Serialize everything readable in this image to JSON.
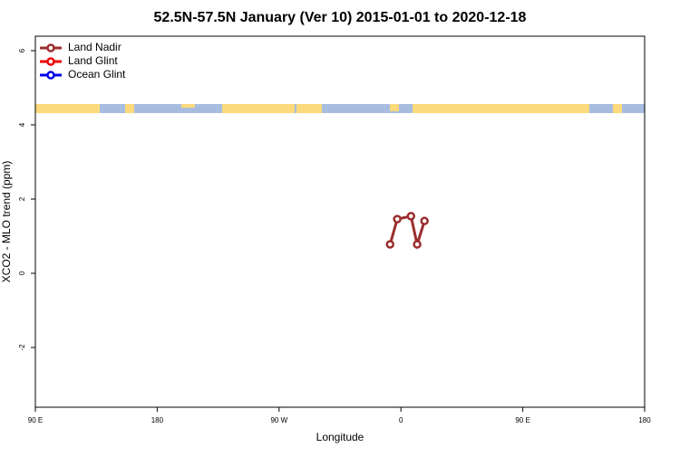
{
  "chart_data": {
    "type": "line",
    "title": "52.5N-57.5N January (Ver 10)   2015-01-01 to 2020-12-18",
    "x_label": "Longitude",
    "y_label": "XCO2 - MLO trend (ppm)",
    "x": [
      -8,
      -2.7,
      7.4,
      12,
      17.4
    ],
    "series": [
      {
        "name": "Land Nadir",
        "color": "#9b2d2d",
        "values": [
          0.78,
          1.46,
          1.54,
          0.78,
          1.41
        ]
      },
      {
        "name": "Land Glint",
        "color": "#ee0000",
        "values": [
          null,
          null,
          null,
          null,
          null
        ]
      },
      {
        "name": "Ocean Glint",
        "color": "#0000ee",
        "values": [
          null,
          null,
          null,
          null,
          null
        ]
      }
    ],
    "xlim": [
      -270,
      180
    ],
    "xticks": [
      {
        "value": -270,
        "label": "90 E"
      },
      {
        "value": -180,
        "label": "180"
      },
      {
        "value": -90,
        "label": "90 W"
      },
      0,
      {
        "value": 90,
        "label": "90 E"
      },
      {
        "value": 180,
        "label": "180"
      }
    ],
    "ylim": [
      -3.61,
      6.39
    ],
    "yticks": [
      -2,
      0,
      2,
      4,
      6
    ],
    "legend": "top-left"
  }
}
